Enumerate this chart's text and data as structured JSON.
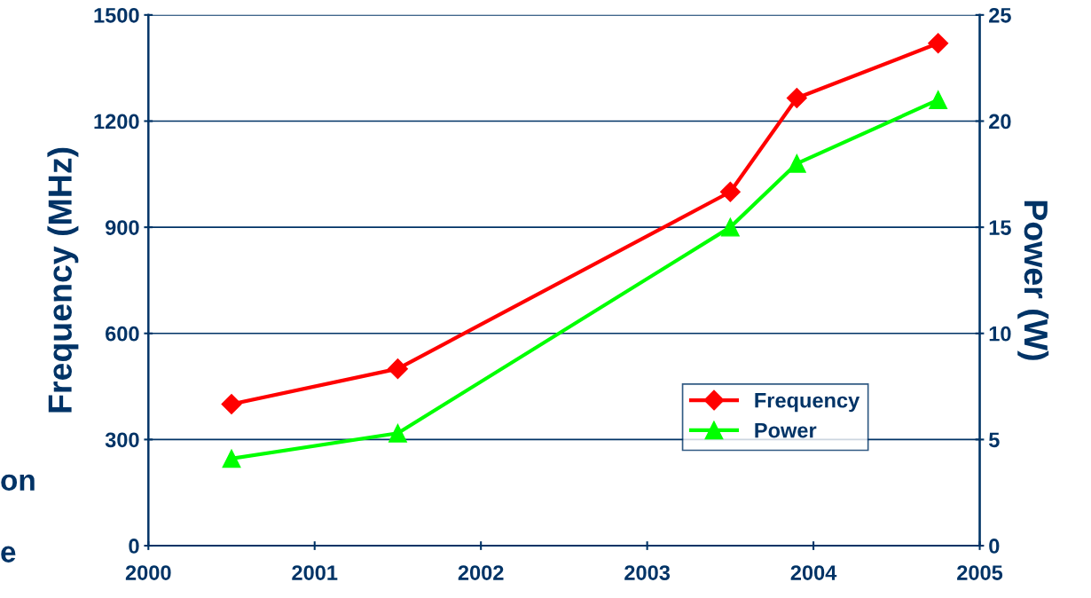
{
  "chart_data": {
    "type": "line",
    "ylabel": "Frequency (MHz)",
    "y2label": "Power (W)",
    "x": [
      2000.5,
      2001.5,
      2003.5,
      2003.9,
      2004.75
    ],
    "series": [
      {
        "name": "Frequency",
        "color": "#ff0000",
        "marker": "diamond",
        "values": [
          400,
          500,
          1000,
          1265,
          1420
        ]
      },
      {
        "name": "Power",
        "color": "#00ff00",
        "marker": "triangle",
        "axis": "y2",
        "values": [
          4.1,
          5.3,
          15,
          18,
          21
        ]
      }
    ],
    "xlim": [
      2000,
      2005
    ],
    "xticks": [
      2000,
      2001,
      2002,
      2003,
      2004,
      2005
    ],
    "ylim": [
      0,
      1500
    ],
    "yticks": [
      0,
      300,
      600,
      900,
      1200,
      1500
    ],
    "y2lim": [
      0,
      25
    ],
    "y2ticks": [
      0,
      5,
      10,
      15,
      20,
      25
    ],
    "grid": "y",
    "legend": "bottom right",
    "line_style": "solid",
    "annotations": [
      "on",
      "e"
    ]
  }
}
